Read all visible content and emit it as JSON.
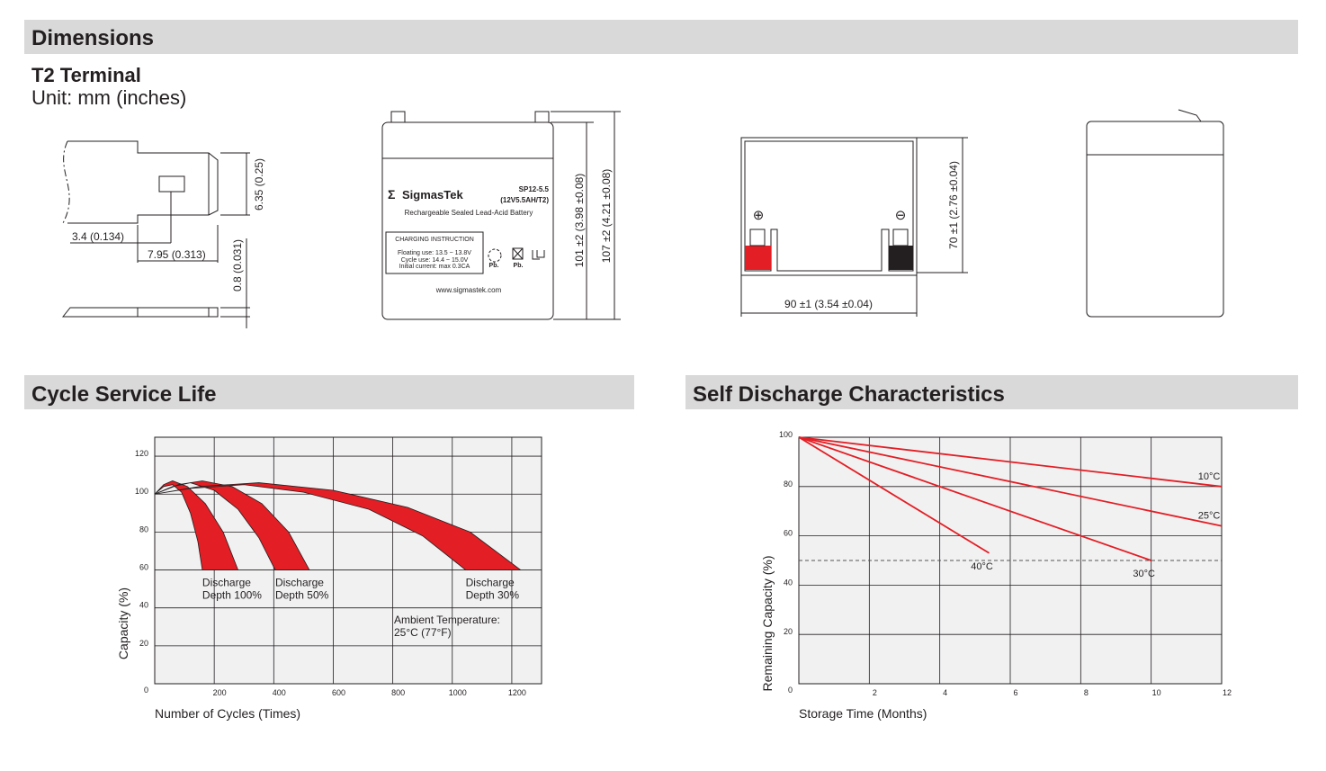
{
  "dimensions": {
    "title": "Dimensions",
    "terminal": "T2 Terminal",
    "unit": "Unit: mm (inches)",
    "terminal_labels": [
      "6.35 (0.25)",
      "3.4 (0.134)",
      "7.95 (0.313)",
      "0.8 (0.031)"
    ],
    "front_labels": [
      "101 ±2 (3.98 ±0.08)",
      "107 ±2 (4.21 ±0.08)"
    ],
    "top_labels": [
      "70 ±1 (2.76 ±0.04)",
      "90 ±1 (3.54 ±0.04)"
    ],
    "polarity": [
      "⊕",
      "⊖"
    ],
    "battery_label": {
      "logo_symbol": "Σ",
      "brand": "SigmasTek",
      "model": "SP12-5.5",
      "rating": "(12V5.5AH/T2)",
      "description": "Rechargeable Sealed Lead-Acid Battery",
      "instruction_title": "CHARGING INSTRUCTION",
      "instructions": [
        "Floating use: 13.5 ~ 13.8V",
        "Cycle use: 14.4 ~ 15.0V",
        "Initial current: max 0.3CA"
      ],
      "marks": [
        "Pb.",
        "Pb."
      ],
      "website": "www.sigmastek.com"
    }
  },
  "chart_data": [
    {
      "type": "band",
      "title": "Cycle Service Life",
      "x_label": "Number of Cycles (Times)",
      "y_label": "Capacity (%)",
      "xlim": [
        0,
        1300
      ],
      "ylim": [
        0,
        130
      ],
      "xticks": [
        200,
        400,
        600,
        800,
        1000,
        1200
      ],
      "yticks": [
        0,
        20,
        40,
        60,
        80,
        100,
        120
      ],
      "grid": true,
      "color": "#e31e24",
      "series": [
        {
          "label": [
            "Discharge",
            "Depth 100%"
          ],
          "x_upper": [
            0,
            30,
            60,
            110,
            170,
            230,
            280
          ],
          "upper": [
            100,
            105,
            107,
            104,
            95,
            80,
            60
          ],
          "x_lower": [
            0,
            30,
            60,
            90,
            120,
            145,
            160
          ],
          "lower": [
            100,
            104,
            105,
            101,
            90,
            75,
            60
          ]
        },
        {
          "label": [
            "Discharge",
            "Depth 50%"
          ],
          "x_upper": [
            0,
            80,
            160,
            260,
            360,
            450,
            520
          ],
          "upper": [
            100,
            105,
            107,
            104,
            95,
            80,
            60
          ],
          "x_lower": [
            0,
            60,
            120,
            200,
            280,
            350,
            405
          ],
          "lower": [
            100,
            104,
            106,
            102,
            92,
            77,
            60
          ]
        },
        {
          "label": [
            "Discharge",
            "Depth 30%"
          ],
          "x_upper": [
            0,
            150,
            350,
            600,
            850,
            1060,
            1230
          ],
          "upper": [
            100,
            104,
            106,
            102,
            93,
            80,
            60
          ],
          "x_lower": [
            0,
            120,
            300,
            500,
            720,
            900,
            1045
          ],
          "lower": [
            100,
            103,
            105,
            101,
            92,
            78,
            60
          ]
        }
      ],
      "annotation": [
        "Ambient Temperature:",
        "25°C (77°F)"
      ]
    },
    {
      "type": "line",
      "title": "Self Discharge Characteristics",
      "x_label": "Storage Time (Months)",
      "y_label": "Remaining Capacity (%)",
      "xlim": [
        0,
        12
      ],
      "ylim": [
        0,
        100
      ],
      "xticks": [
        2,
        4,
        6,
        8,
        10,
        12
      ],
      "yticks": [
        0,
        20,
        40,
        60,
        80,
        100
      ],
      "grid": true,
      "color": "#e31e24",
      "reference": 50,
      "series": [
        {
          "label": "10°C",
          "x": [
            0,
            12
          ],
          "values": [
            100,
            80
          ]
        },
        {
          "label": "25°C",
          "x": [
            0,
            12
          ],
          "values": [
            100,
            64
          ]
        },
        {
          "label": "30°C",
          "x": [
            0,
            10
          ],
          "values": [
            100,
            50
          ]
        },
        {
          "label": "40°C",
          "x": [
            0,
            5.4
          ],
          "values": [
            100,
            53
          ]
        }
      ]
    }
  ]
}
